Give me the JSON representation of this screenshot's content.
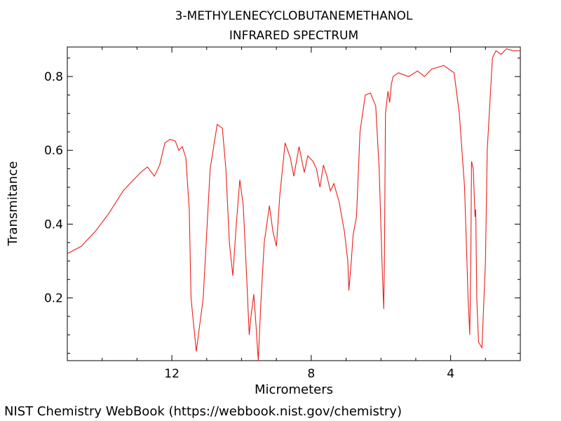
{
  "footer": "NIST Chemistry WebBook (https://webbook.nist.gov/chemistry)",
  "chart_data": {
    "type": "line",
    "title": "3-METHYLENECYCLOBUTANEMETHANOL",
    "subtitle": "INFRARED SPECTRUM",
    "xlabel": "Micrometers",
    "ylabel": "Transmitance",
    "xlim": [
      15.0,
      2.0
    ],
    "ylim": [
      0.03,
      0.88
    ],
    "xticks": [
      12,
      8,
      4
    ],
    "yticks": [
      0.2,
      0.4,
      0.6,
      0.8
    ],
    "xtick_labels": [
      "12",
      "8",
      "4"
    ],
    "ytick_labels": [
      "0.2",
      "0.4",
      "0.6",
      "0.8"
    ],
    "grid": false,
    "series": [
      {
        "color": "#e8201a",
        "x": [
          15.0,
          14.6,
          14.2,
          13.8,
          13.4,
          13.0,
          12.9,
          12.7,
          12.5,
          12.35,
          12.2,
          12.05,
          11.9,
          11.8,
          11.7,
          11.6,
          11.5,
          11.45,
          11.3,
          11.1,
          10.9,
          10.7,
          10.55,
          10.45,
          10.35,
          10.25,
          10.15,
          10.05,
          9.95,
          9.85,
          9.78,
          9.73,
          9.65,
          9.58,
          9.52,
          9.45,
          9.35,
          9.2,
          9.1,
          9.0,
          8.9,
          8.75,
          8.6,
          8.5,
          8.35,
          8.2,
          8.1,
          7.95,
          7.85,
          7.75,
          7.65,
          7.55,
          7.45,
          7.35,
          7.2,
          7.05,
          6.95,
          6.92,
          6.85,
          6.8,
          6.7,
          6.6,
          6.45,
          6.3,
          6.15,
          6.05,
          5.97,
          5.92,
          5.9,
          5.87,
          5.8,
          5.75,
          5.7,
          5.65,
          5.5,
          5.2,
          4.95,
          4.75,
          4.55,
          4.2,
          3.9,
          3.75,
          3.6,
          3.5,
          3.45,
          3.42,
          3.4,
          3.35,
          3.3,
          3.28,
          3.25,
          3.2,
          3.1,
          3.0,
          2.95,
          2.8,
          2.7,
          2.55,
          2.4,
          2.2,
          2.0
        ],
        "y": [
          0.32,
          0.34,
          0.38,
          0.43,
          0.49,
          0.53,
          0.54,
          0.555,
          0.53,
          0.56,
          0.62,
          0.63,
          0.625,
          0.6,
          0.61,
          0.58,
          0.44,
          0.2,
          0.055,
          0.2,
          0.55,
          0.67,
          0.66,
          0.55,
          0.35,
          0.26,
          0.4,
          0.52,
          0.45,
          0.25,
          0.1,
          0.15,
          0.21,
          0.12,
          0.03,
          0.18,
          0.35,
          0.45,
          0.38,
          0.34,
          0.48,
          0.62,
          0.58,
          0.53,
          0.61,
          0.54,
          0.585,
          0.57,
          0.55,
          0.5,
          0.56,
          0.53,
          0.49,
          0.51,
          0.46,
          0.38,
          0.3,
          0.22,
          0.3,
          0.37,
          0.42,
          0.65,
          0.75,
          0.755,
          0.72,
          0.55,
          0.3,
          0.17,
          0.3,
          0.7,
          0.76,
          0.73,
          0.78,
          0.8,
          0.81,
          0.8,
          0.815,
          0.8,
          0.82,
          0.83,
          0.81,
          0.7,
          0.5,
          0.2,
          0.1,
          0.3,
          0.57,
          0.55,
          0.42,
          0.44,
          0.2,
          0.08,
          0.065,
          0.3,
          0.6,
          0.85,
          0.87,
          0.86,
          0.875,
          0.87,
          0.87
        ]
      }
    ]
  }
}
